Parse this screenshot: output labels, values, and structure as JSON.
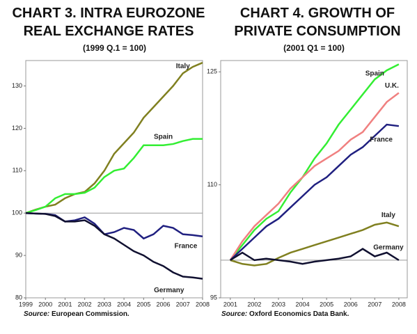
{
  "chart_data": [
    {
      "type": "line",
      "title": "CHART 3. INTRA EUROZONE REAL EXCHANGE RATES",
      "subtitle": "(1999 Q.1 = 100)",
      "source_label": "Source:",
      "source": "European Commission.",
      "xlim": [
        1999,
        2008
      ],
      "xticks": [
        1999,
        2000,
        2001,
        2002,
        2003,
        2004,
        2005,
        2006,
        2007,
        2008
      ],
      "ylim": [
        80,
        136
      ],
      "yticks": [
        80,
        90,
        100,
        110,
        120,
        130
      ],
      "hline": 100,
      "x": [
        1999,
        1999.5,
        2000,
        2000.5,
        2001,
        2001.5,
        2002,
        2002.5,
        2003,
        2003.5,
        2004,
        2004.5,
        2005,
        2005.5,
        2006,
        2006.5,
        2007,
        2007.5,
        2008
      ],
      "series": [
        {
          "name": "Italy",
          "color": "#808020",
          "values": [
            100,
            100.8,
            101.5,
            102,
            103.5,
            104.5,
            105,
            107,
            110,
            114,
            116.5,
            119,
            122.5,
            125,
            127.5,
            130,
            133,
            134.5,
            135.5
          ]
        },
        {
          "name": "Spain",
          "color": "#33ee33",
          "values": [
            100,
            100.7,
            101.5,
            103.5,
            104.5,
            104.5,
            104.8,
            106,
            108.5,
            110,
            110.5,
            113,
            116,
            116,
            116,
            116.3,
            117,
            117.5,
            117.5
          ]
        },
        {
          "name": "France",
          "color": "#202080",
          "values": [
            100,
            99.9,
            99.8,
            99.5,
            98,
            98.3,
            99,
            97.5,
            95,
            95.5,
            96.5,
            96,
            94,
            95,
            97,
            96.5,
            95,
            94.8,
            94.5
          ]
        },
        {
          "name": "Germany",
          "color": "#101030",
          "values": [
            100,
            99.9,
            99.8,
            99.3,
            98,
            98,
            98.3,
            97,
            95,
            94,
            92.5,
            91,
            90,
            88.5,
            87.5,
            86,
            85,
            84.8,
            84.5
          ]
        }
      ]
    },
    {
      "type": "line",
      "title": "CHART 4. GROWTH OF PRIVATE CONSUMPTION",
      "subtitle": "(2001 Q1 = 100)",
      "source_label": "Source:",
      "source": "Oxford Economics Data Bank.",
      "xlim": [
        2000.6,
        2008.35
      ],
      "xticks": [
        2001,
        2002,
        2003,
        2004,
        2005,
        2006,
        2007,
        2008
      ],
      "ylim": [
        95,
        126.5
      ],
      "yticks": [
        95,
        110,
        125
      ],
      "hline": 100,
      "x": [
        2001,
        2001.5,
        2002,
        2002.5,
        2003,
        2003.5,
        2004,
        2004.5,
        2005,
        2005.5,
        2006,
        2006.5,
        2007,
        2007.5,
        2008
      ],
      "series": [
        {
          "name": "Spain",
          "color": "#33ee33",
          "values": [
            100,
            102,
            104,
            105.5,
            106.5,
            109,
            111,
            113.5,
            115.5,
            118,
            120,
            122,
            124,
            125.2,
            126
          ]
        },
        {
          "name": "U.K.",
          "color": "#f08080",
          "values": [
            100,
            102.5,
            104.5,
            106,
            107.5,
            109.5,
            111,
            112.5,
            113.5,
            114.5,
            116,
            117,
            119,
            121,
            122.2
          ]
        },
        {
          "name": "France",
          "color": "#202080",
          "values": [
            100,
            101.5,
            103,
            104.5,
            105.5,
            107,
            108.5,
            110,
            111,
            112.5,
            114,
            115,
            116.5,
            118,
            117.8
          ]
        },
        {
          "name": "Italy",
          "color": "#808020",
          "values": [
            100,
            99.5,
            99.3,
            99.5,
            100.3,
            101,
            101.5,
            102,
            102.5,
            103,
            103.5,
            104,
            104.7,
            105,
            104.5
          ]
        },
        {
          "name": "Germany",
          "color": "#101030",
          "values": [
            100,
            101,
            100,
            100.2,
            100,
            99.8,
            99.5,
            99.8,
            100,
            100.2,
            100.5,
            101.5,
            100.5,
            101,
            100
          ]
        }
      ]
    }
  ]
}
